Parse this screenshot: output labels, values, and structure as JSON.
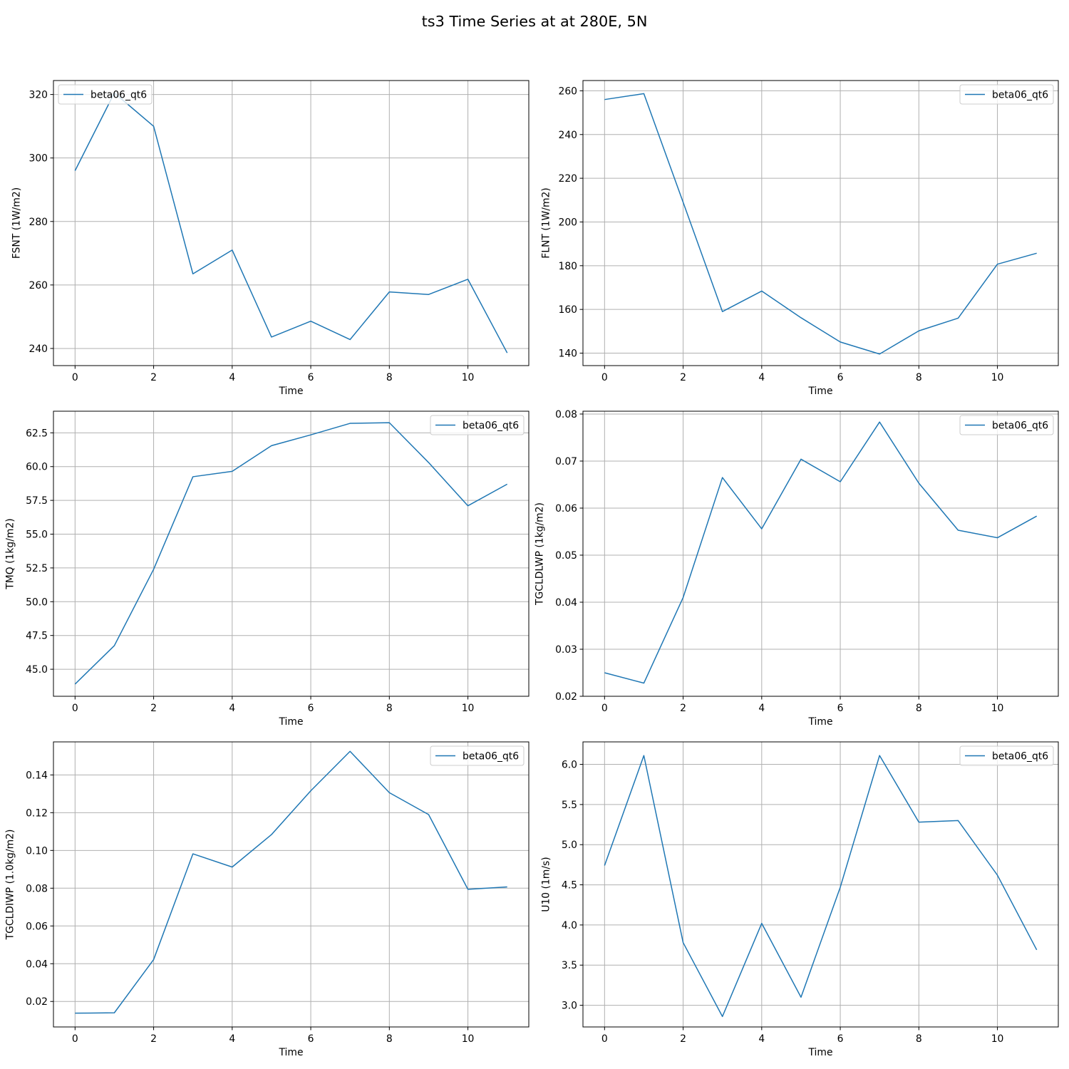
{
  "title": "ts3 Time Series at at 280E, 5N",
  "colors": {
    "series": "#1f77b4",
    "grid": "#b0b0b0",
    "axes": "#000000"
  },
  "chart_data": [
    {
      "type": "line",
      "panel": "top-left",
      "xlabel": "Time",
      "ylabel": "FSNT (1W/m2)",
      "y_inverted": true,
      "grid": true,
      "legend_loc": "upper left",
      "xlim": [
        -0.55,
        11.55
      ],
      "ylim": [
        324.4,
        234.6
      ],
      "xticks": [
        0,
        2,
        4,
        6,
        8,
        10
      ],
      "yticks": [
        240,
        260,
        280,
        300,
        320
      ],
      "ytick_labels": [
        "240",
        "260",
        "280",
        "300",
        "320"
      ],
      "series": [
        {
          "name": "beta06_qt6",
          "x": [
            0,
            1,
            2,
            3,
            4,
            5,
            6,
            7,
            8,
            9,
            10,
            11
          ],
          "values": [
            296.0,
            320.5,
            310.0,
            263.5,
            271.0,
            243.6,
            248.6,
            242.8,
            257.8,
            257.0,
            261.8,
            238.6
          ]
        }
      ]
    },
    {
      "type": "line",
      "panel": "top-right",
      "xlabel": "Time",
      "ylabel": "FLNT (1W/m2)",
      "y_inverted": true,
      "grid": true,
      "legend_loc": "upper right",
      "xlim": [
        -0.55,
        11.55
      ],
      "ylim": [
        264.7,
        134.3
      ],
      "xticks": [
        0,
        2,
        4,
        6,
        8,
        10
      ],
      "yticks": [
        140,
        160,
        180,
        200,
        220,
        240,
        260
      ],
      "ytick_labels": [
        "140",
        "160",
        "180",
        "200",
        "220",
        "240",
        "260"
      ],
      "series": [
        {
          "name": "beta06_qt6",
          "x": [
            0,
            1,
            2,
            3,
            4,
            5,
            6,
            7,
            8,
            9,
            10,
            11
          ],
          "values": [
            256.0,
            258.7,
            209.0,
            159.0,
            168.4,
            156.2,
            145.1,
            139.6,
            150.2,
            156.0,
            180.7,
            185.7
          ]
        }
      ]
    },
    {
      "type": "line",
      "panel": "middle-left",
      "xlabel": "Time",
      "ylabel": "TMQ (1kg/m2)",
      "y_inverted": true,
      "grid": true,
      "legend_loc": "upper right",
      "xlim": [
        -0.55,
        11.55
      ],
      "ylim": [
        64.1,
        43.0
      ],
      "xticks": [
        0,
        2,
        4,
        6,
        8,
        10
      ],
      "yticks": [
        45.0,
        47.5,
        50.0,
        52.5,
        55.0,
        57.5,
        60.0,
        62.5
      ],
      "ytick_labels": [
        "45.0",
        "47.5",
        "50.0",
        "52.5",
        "55.0",
        "57.5",
        "60.0",
        "62.5"
      ],
      "series": [
        {
          "name": "beta06_qt6",
          "x": [
            0,
            1,
            2,
            3,
            4,
            5,
            6,
            7,
            8,
            9,
            10,
            11
          ],
          "values": [
            43.9,
            46.75,
            52.4,
            59.25,
            59.65,
            61.55,
            62.35,
            63.2,
            63.25,
            60.3,
            57.1,
            58.7
          ]
        }
      ]
    },
    {
      "type": "line",
      "panel": "middle-right",
      "xlabel": "Time",
      "ylabel": "TGCLDLWP (1kg/m2)",
      "y_inverted": true,
      "grid": true,
      "legend_loc": "upper right",
      "xlim": [
        -0.55,
        11.55
      ],
      "ylim": [
        0.0806,
        0.02
      ],
      "xticks": [
        0,
        2,
        4,
        6,
        8,
        10
      ],
      "yticks": [
        0.02,
        0.03,
        0.04,
        0.05,
        0.06,
        0.07,
        0.08
      ],
      "ytick_labels": [
        "0.02",
        "0.03",
        "0.04",
        "0.05",
        "0.06",
        "0.07",
        "0.08"
      ],
      "series": [
        {
          "name": "beta06_qt6",
          "x": [
            0,
            1,
            2,
            3,
            4,
            5,
            6,
            7,
            8,
            9,
            10,
            11
          ],
          "values": [
            0.025,
            0.0228,
            0.041,
            0.0665,
            0.0556,
            0.0704,
            0.0656,
            0.0783,
            0.0653,
            0.0553,
            0.0537,
            0.0583
          ]
        }
      ]
    },
    {
      "type": "line",
      "panel": "bottom-left",
      "xlabel": "Time",
      "ylabel": "TGCLDIWP (1.0kg/m2)",
      "y_inverted": true,
      "grid": true,
      "legend_loc": "upper right",
      "xlim": [
        -0.55,
        11.55
      ],
      "ylim": [
        0.1575,
        0.0065
      ],
      "xticks": [
        0,
        2,
        4,
        6,
        8,
        10
      ],
      "yticks": [
        0.02,
        0.04,
        0.06,
        0.08,
        0.1,
        0.12,
        0.14
      ],
      "ytick_labels": [
        "0.02",
        "0.04",
        "0.06",
        "0.08",
        "0.10",
        "0.12",
        "0.14"
      ],
      "series": [
        {
          "name": "beta06_qt6",
          "x": [
            0,
            1,
            2,
            3,
            4,
            5,
            6,
            7,
            8,
            9,
            10,
            11
          ],
          "values": [
            0.0138,
            0.014,
            0.0422,
            0.0982,
            0.0912,
            0.1084,
            0.1316,
            0.1525,
            0.1306,
            0.119,
            0.0794,
            0.0807
          ]
        }
      ]
    },
    {
      "type": "line",
      "panel": "bottom-right",
      "xlabel": "Time",
      "ylabel": "U10 (1m/s)",
      "y_inverted": true,
      "grid": true,
      "legend_loc": "upper right",
      "xlim": [
        -0.55,
        11.55
      ],
      "ylim": [
        6.28,
        2.73
      ],
      "xticks": [
        0,
        2,
        4,
        6,
        8,
        10
      ],
      "yticks": [
        3.0,
        3.5,
        4.0,
        4.5,
        5.0,
        5.5,
        6.0
      ],
      "ytick_labels": [
        "3.0",
        "3.5",
        "4.0",
        "4.5",
        "5.0",
        "5.5",
        "6.0"
      ],
      "series": [
        {
          "name": "beta06_qt6",
          "x": [
            0,
            1,
            2,
            3,
            4,
            5,
            6,
            7,
            8,
            9,
            10,
            11
          ],
          "values": [
            4.74,
            6.11,
            3.78,
            2.86,
            4.02,
            3.1,
            4.47,
            6.11,
            5.28,
            5.3,
            4.62,
            3.69
          ]
        }
      ]
    }
  ]
}
